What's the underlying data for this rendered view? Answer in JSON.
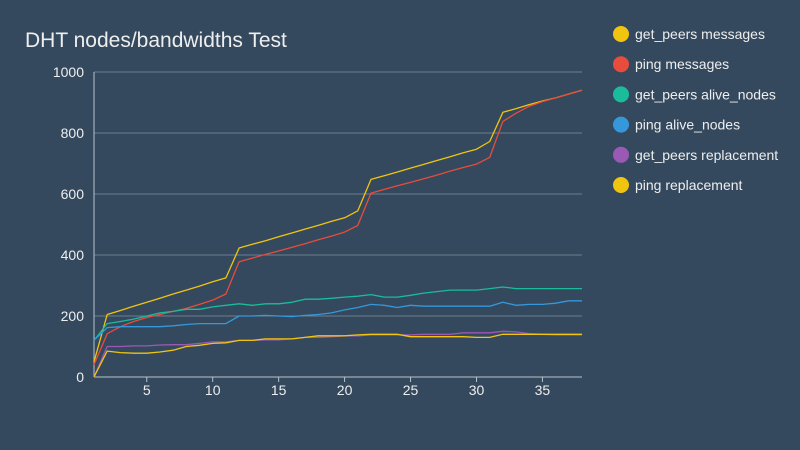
{
  "chart_data": {
    "type": "line",
    "title": "DHT nodes/bandwidths Test",
    "xlabel": "",
    "ylabel": "",
    "xlim": [
      1,
      38
    ],
    "ylim": [
      0,
      1000
    ],
    "x_ticks": [
      5,
      10,
      15,
      20,
      25,
      30,
      35
    ],
    "y_ticks": [
      0,
      200,
      400,
      600,
      800,
      1000
    ],
    "grid": true,
    "legend_position": "right",
    "x": [
      1,
      2,
      3,
      4,
      5,
      6,
      7,
      8,
      9,
      10,
      11,
      12,
      13,
      14,
      15,
      16,
      17,
      18,
      19,
      20,
      21,
      22,
      23,
      24,
      25,
      26,
      27,
      28,
      29,
      30,
      31,
      32,
      33,
      34,
      35,
      36,
      37,
      38
    ],
    "series": [
      {
        "name": "get_peers messages",
        "color": "#f1c40f",
        "values": [
          50,
          205,
          218,
          232,
          245,
          258,
          272,
          285,
          298,
          312,
          325,
          423,
          435,
          447,
          460,
          472,
          485,
          497,
          510,
          522,
          545,
          648,
          660,
          672,
          685,
          697,
          710,
          722,
          735,
          747,
          772,
          868,
          880,
          893,
          905,
          915,
          928,
          940
        ]
      },
      {
        "name": "ping messages",
        "color": "#e74c3c",
        "values": [
          40,
          142,
          165,
          182,
          195,
          205,
          215,
          225,
          238,
          252,
          272,
          378,
          390,
          402,
          413,
          425,
          437,
          450,
          462,
          475,
          497,
          603,
          615,
          627,
          638,
          650,
          662,
          675,
          687,
          698,
          720,
          838,
          865,
          888,
          903,
          915,
          928,
          940
        ]
      },
      {
        "name": "get_peers alive_nodes",
        "color": "#1abc9c",
        "values": [
          120,
          175,
          182,
          190,
          200,
          210,
          215,
          222,
          222,
          230,
          235,
          240,
          235,
          240,
          240,
          245,
          255,
          255,
          258,
          262,
          265,
          270,
          262,
          262,
          268,
          275,
          280,
          285,
          285,
          285,
          290,
          295,
          290,
          290,
          290,
          290,
          290,
          290
        ]
      },
      {
        "name": "ping alive_nodes",
        "color": "#3498db",
        "values": [
          120,
          162,
          165,
          165,
          165,
          165,
          168,
          172,
          175,
          175,
          175,
          200,
          200,
          202,
          200,
          198,
          202,
          205,
          210,
          220,
          228,
          238,
          235,
          228,
          235,
          232,
          232,
          232,
          232,
          232,
          232,
          245,
          235,
          238,
          238,
          242,
          250,
          250
        ]
      },
      {
        "name": "get_peers replacement",
        "color": "#9b59b6",
        "values": [
          0,
          100,
          100,
          102,
          102,
          105,
          106,
          106,
          110,
          115,
          115,
          120,
          120,
          122,
          122,
          125,
          130,
          130,
          132,
          135,
          135,
          138,
          138,
          138,
          138,
          140,
          140,
          140,
          145,
          145,
          145,
          150,
          148,
          142,
          140,
          138,
          138,
          138
        ]
      },
      {
        "name": "ping replacement",
        "color": "#f1c40f",
        "values": [
          0,
          85,
          80,
          78,
          78,
          82,
          88,
          100,
          104,
          110,
          112,
          120,
          120,
          125,
          125,
          125,
          130,
          135,
          135,
          135,
          138,
          140,
          140,
          140,
          132,
          132,
          132,
          132,
          132,
          130,
          130,
          140,
          140,
          140,
          140,
          140,
          140,
          140
        ]
      }
    ]
  }
}
